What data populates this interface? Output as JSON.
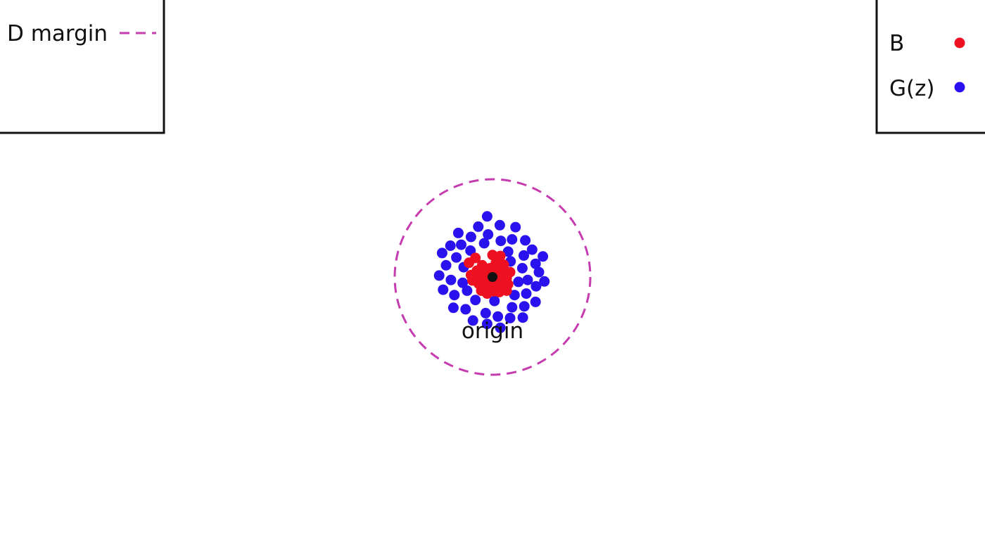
{
  "diagram": {
    "origin_label": "origin",
    "margin_circle": {
      "radius": 2,
      "color": "#c63cb0",
      "dashed": true
    },
    "colors": {
      "B": "#ee1122",
      "G": "#2a12ee",
      "origin": "#111111"
    },
    "legend_left": {
      "label": "D margin",
      "line_color": "#c63cb0"
    },
    "legend_right": {
      "entries": [
        {
          "label": "B",
          "color": "#ee1122"
        },
        {
          "label": "G(z)",
          "color": "#2a12ee"
        }
      ]
    },
    "points_B": [
      [
        0.0,
        0.45
      ],
      [
        -0.35,
        0.39
      ],
      [
        0.16,
        0.43
      ],
      [
        -0.48,
        0.29
      ],
      [
        -0.21,
        0.24
      ],
      [
        0.07,
        0.29
      ],
      [
        0.23,
        0.25
      ],
      [
        -0.32,
        0.13
      ],
      [
        -0.05,
        0.18
      ],
      [
        -0.15,
        0.1
      ],
      [
        0.09,
        0.12
      ],
      [
        0.23,
        0.1
      ],
      [
        0.36,
        0.1
      ],
      [
        -0.44,
        0.04
      ],
      [
        -0.28,
        -0.01
      ],
      [
        -0.13,
        -0.07
      ],
      [
        0.14,
        -0.02
      ],
      [
        0.29,
        -0.02
      ],
      [
        -0.41,
        -0.07
      ],
      [
        -0.28,
        -0.14
      ],
      [
        0.03,
        -0.14
      ],
      [
        0.19,
        -0.17
      ],
      [
        0.32,
        -0.15
      ],
      [
        -0.23,
        -0.28
      ],
      [
        -0.11,
        -0.22
      ],
      [
        0.03,
        -0.29
      ],
      [
        0.14,
        -0.31
      ],
      [
        0.29,
        -0.28
      ],
      [
        -0.11,
        -0.34
      ]
    ],
    "points_G": [
      [
        -0.11,
        1.24
      ],
      [
        -0.29,
        1.03
      ],
      [
        0.15,
        1.06
      ],
      [
        0.47,
        1.02
      ],
      [
        -0.7,
        0.9
      ],
      [
        -0.44,
        0.82
      ],
      [
        -0.09,
        0.87
      ],
      [
        0.17,
        0.74
      ],
      [
        0.4,
        0.77
      ],
      [
        0.67,
        0.75
      ],
      [
        -0.86,
        0.64
      ],
      [
        -0.64,
        0.66
      ],
      [
        -0.17,
        0.69
      ],
      [
        0.81,
        0.56
      ],
      [
        -1.03,
        0.49
      ],
      [
        -0.45,
        0.54
      ],
      [
        0.32,
        0.52
      ],
      [
        -0.74,
        0.4
      ],
      [
        0.64,
        0.44
      ],
      [
        1.03,
        0.42
      ],
      [
        0.88,
        0.27
      ],
      [
        -0.95,
        0.24
      ],
      [
        -0.59,
        0.2
      ],
      [
        0.37,
        0.32
      ],
      [
        0.61,
        0.18
      ],
      [
        0.95,
        0.1
      ],
      [
        -1.09,
        0.03
      ],
      [
        -0.85,
        -0.06
      ],
      [
        -0.61,
        -0.12
      ],
      [
        0.72,
        -0.06
      ],
      [
        0.53,
        -0.1
      ],
      [
        1.06,
        -0.09
      ],
      [
        -1.01,
        -0.26
      ],
      [
        -0.52,
        -0.28
      ],
      [
        0.89,
        -0.19
      ],
      [
        -0.78,
        -0.37
      ],
      [
        0.45,
        -0.37
      ],
      [
        0.69,
        -0.34
      ],
      [
        -0.35,
        -0.47
      ],
      [
        0.04,
        -0.49
      ],
      [
        0.88,
        -0.51
      ],
      [
        -0.8,
        -0.63
      ],
      [
        -0.55,
        -0.66
      ],
      [
        -0.14,
        -0.74
      ],
      [
        0.65,
        -0.6
      ],
      [
        0.4,
        -0.62
      ],
      [
        0.11,
        -0.81
      ],
      [
        0.36,
        -0.84
      ],
      [
        0.62,
        -0.83
      ],
      [
        -0.4,
        -0.89
      ],
      [
        -0.11,
        -0.96
      ],
      [
        0.16,
        -1.04
      ]
    ]
  }
}
